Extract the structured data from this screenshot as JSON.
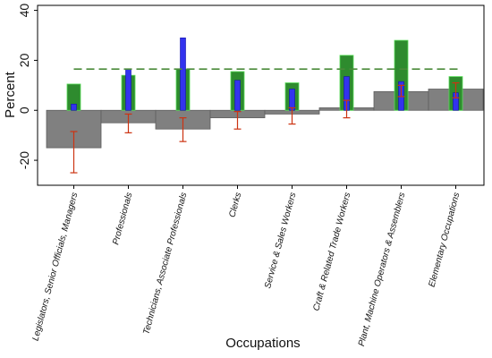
{
  "chart_data": {
    "type": "bar",
    "xlabel": "Occupations",
    "ylabel": "Percent",
    "ylim": [
      -30,
      42
    ],
    "yticks": [
      -20,
      0,
      20,
      40
    ],
    "grid": false,
    "categories": [
      "Legislators, Senior Officials, Managers",
      "Professionals",
      "Technicians, Associate Professionals",
      "Clerks",
      "Service & Sales Workers",
      "Craft & Related Trade Workers",
      "Plant, Machine Operators & Assemblers",
      "Elementary Occupations"
    ],
    "series": [
      {
        "type": "step_bar",
        "color": "#808080",
        "values": [
          -15,
          -5,
          -7.5,
          -3,
          -1.5,
          1,
          7.5,
          8.5
        ]
      },
      {
        "type": "bar",
        "color": "#2e8b2e",
        "values": [
          10.5,
          14,
          16.5,
          15.5,
          11,
          22,
          28,
          13.5
        ]
      },
      {
        "type": "bar",
        "color": "#3333ee",
        "values": [
          2.5,
          16.5,
          29,
          12,
          8.5,
          13.5,
          11.5,
          7
        ]
      },
      {
        "type": "errorbar",
        "color": "#cc3311",
        "low": [
          -25,
          -9,
          -12.5,
          -7.5,
          -5.5,
          -3,
          5.5,
          5
        ],
        "high": [
          -8.5,
          -1.5,
          -3,
          -0.5,
          1,
          4,
          10,
          11
        ]
      },
      {
        "type": "hline",
        "color": "#4a8a3a",
        "value": 16.5
      }
    ]
  }
}
